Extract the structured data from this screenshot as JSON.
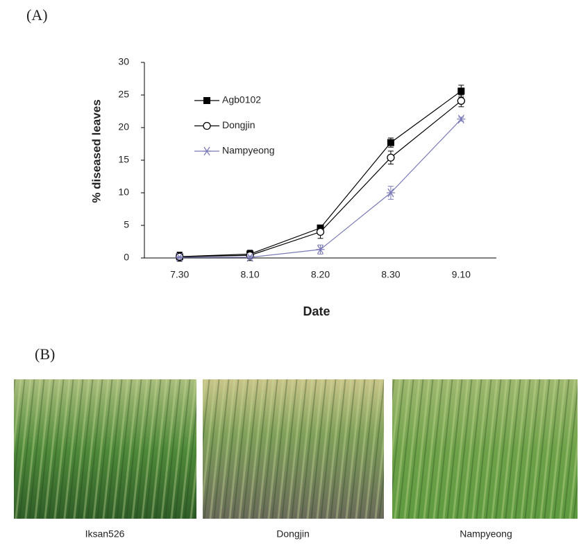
{
  "panel_a_label": "(A)",
  "panel_b_label": "(B)",
  "chart_data": {
    "type": "line",
    "x_label": "Date",
    "y_label": "% diseased leaves",
    "categories": [
      "7.30",
      "8.10",
      "8.20",
      "8.30",
      "9.10"
    ],
    "ylim": [
      0,
      30
    ],
    "yticks": [
      0,
      5,
      10,
      15,
      20,
      25,
      30
    ],
    "series": [
      {
        "name": "Agb0102",
        "color": "#000000",
        "marker": "square",
        "values": [
          0.2,
          0.6,
          4.6,
          17.7,
          25.6
        ],
        "errors": [
          0.7,
          0.5,
          0.4,
          0.7,
          0.9
        ]
      },
      {
        "name": "Dongjin",
        "color": "#000000",
        "marker": "circle",
        "values": [
          0.2,
          0.4,
          4.0,
          15.4,
          24.1
        ],
        "errors": [
          0.6,
          0.8,
          1.0,
          1.0,
          0.9
        ]
      },
      {
        "name": "Nampyeong",
        "color": "#7a7ab8",
        "marker": "star",
        "values": [
          0.1,
          0.1,
          1.3,
          10.0,
          21.3
        ],
        "errors": [
          0.1,
          0.2,
          0.7,
          1.0,
          0.3
        ]
      }
    ]
  },
  "photos": [
    "Iksan526",
    "Dongjin",
    "Nampyeong"
  ]
}
